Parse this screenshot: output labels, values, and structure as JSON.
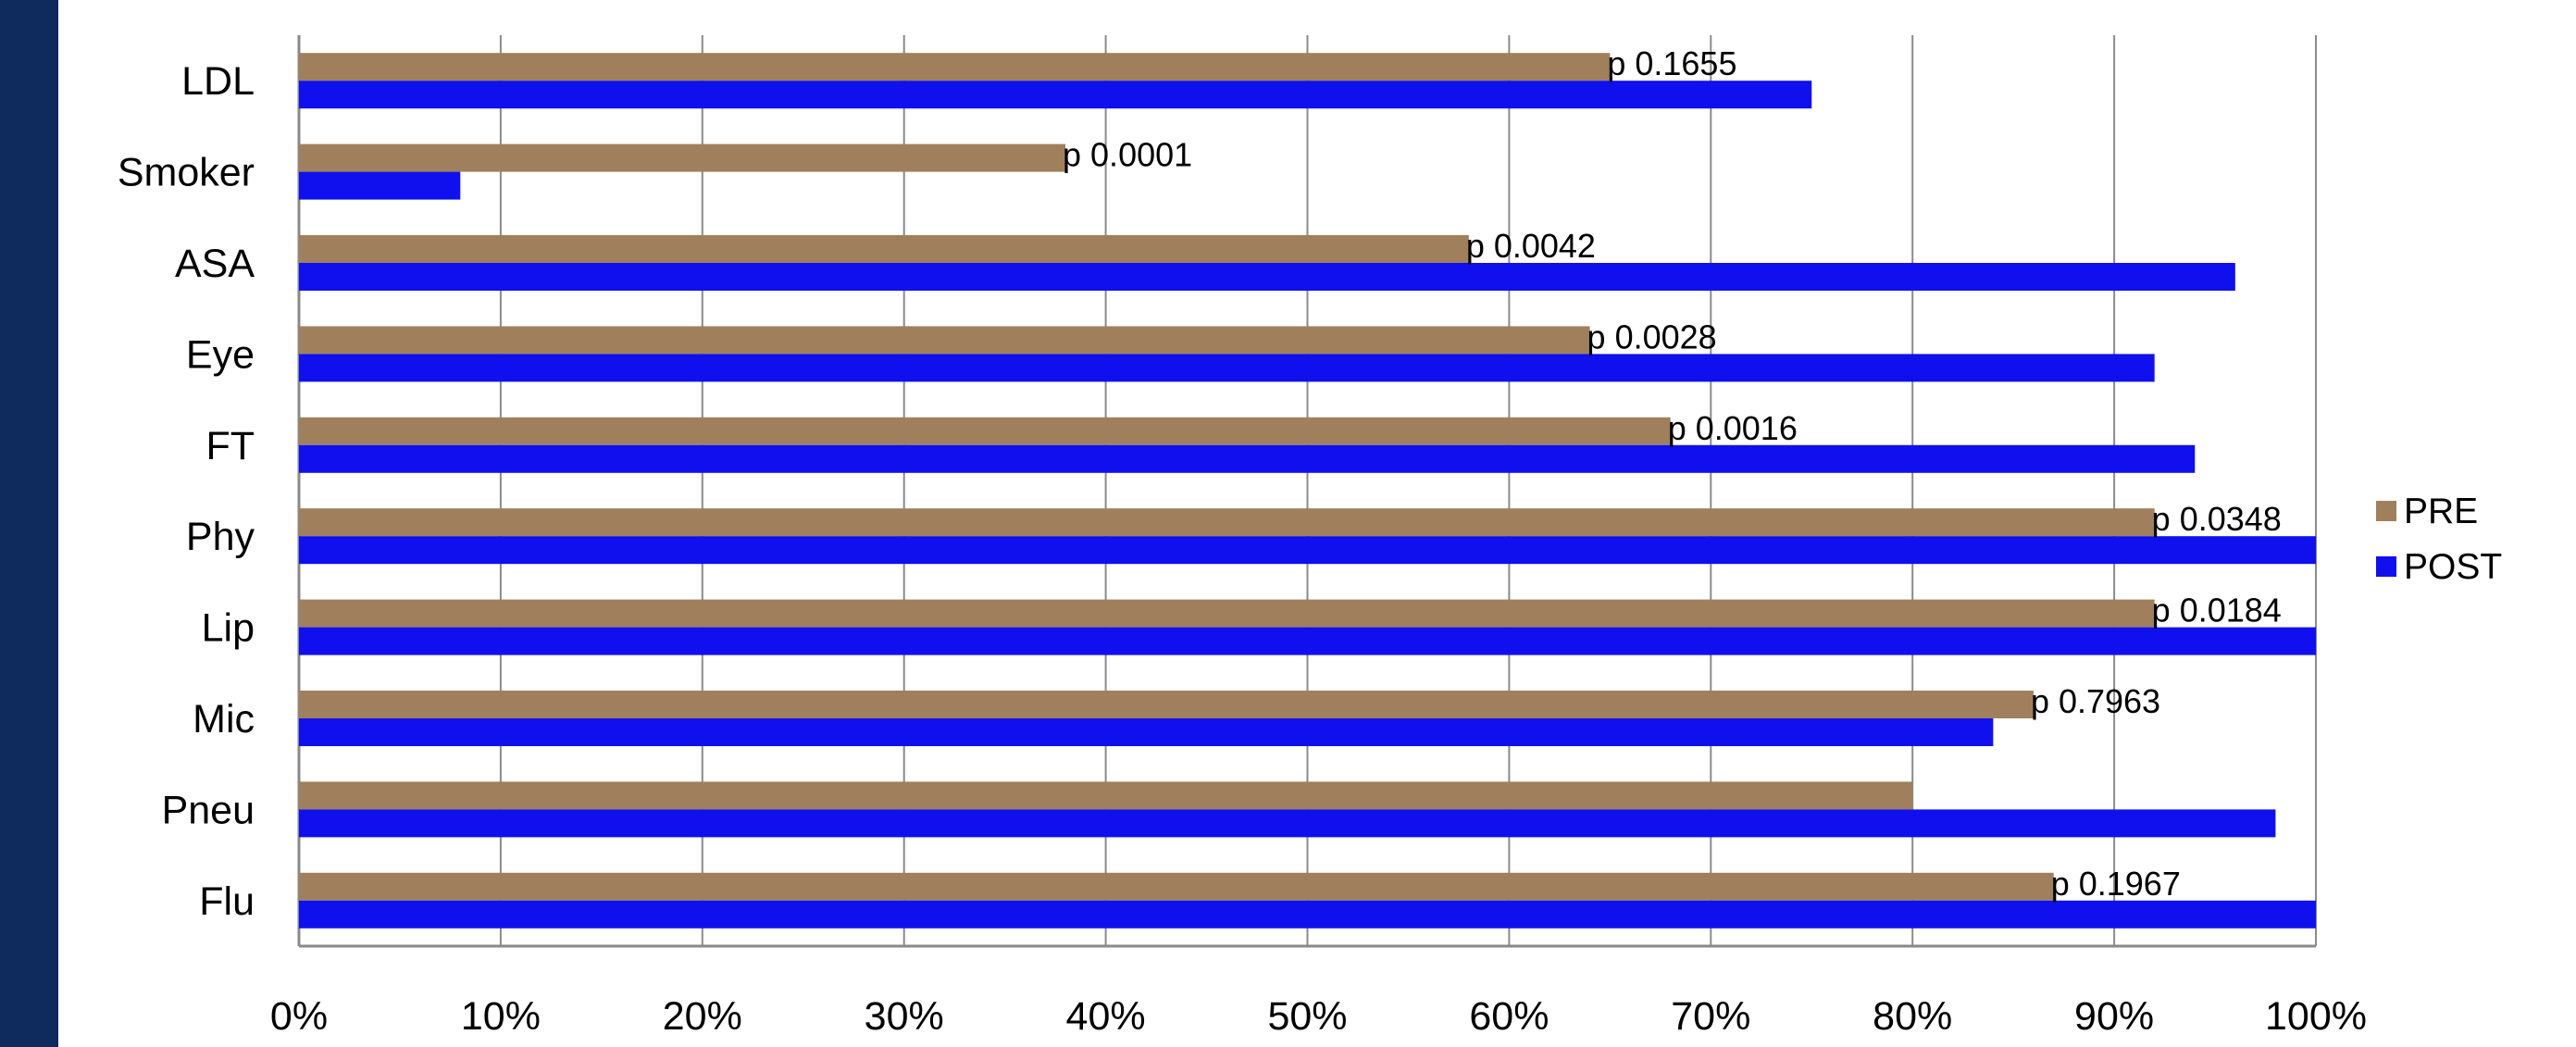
{
  "chart_data": {
    "type": "bar",
    "orientation": "horizontal",
    "categories": [
      "LDL",
      "Smoker",
      "ASA",
      "Eye",
      "FT",
      "Phy",
      "Lip",
      "Mic",
      "Pneu",
      "Flu"
    ],
    "series": [
      {
        "name": "PRE",
        "color": "#a0805c",
        "values": [
          65,
          38,
          58,
          64,
          68,
          92,
          92,
          86,
          80,
          87
        ]
      },
      {
        "name": "POST",
        "color": "#1010ee",
        "values": [
          75,
          8,
          96,
          92,
          94,
          100,
          100,
          84,
          98,
          100
        ]
      }
    ],
    "annotations": [
      "p 0.1655",
      "p 0.0001",
      "p 0.0042",
      "p 0.0028",
      "p 0.0016",
      "p 0.0348",
      "p 0.0184",
      "p 0.7963",
      "",
      "p 0.1967"
    ],
    "xlim": [
      0,
      100
    ],
    "xticks": [
      "0%",
      "10%",
      "20%",
      "30%",
      "40%",
      "50%",
      "60%",
      "70%",
      "80%",
      "90%",
      "100%"
    ],
    "xlabel": "",
    "ylabel": "",
    "grid": true,
    "legend_position": "right",
    "legend": [
      "PRE",
      "POST"
    ]
  }
}
